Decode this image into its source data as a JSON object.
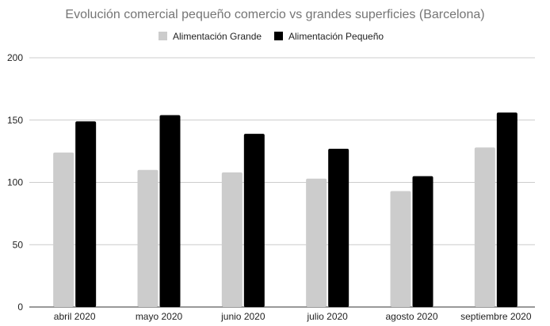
{
  "chart_data": {
    "type": "bar",
    "title": "Evolución comercial pequeño comercio vs grandes superficies (Barcelona)",
    "xlabel": "",
    "ylabel": "",
    "categories": [
      "abril 2020",
      "mayo 2020",
      "junio 2020",
      "julio 2020",
      "agosto 2020",
      "septiembre 2020"
    ],
    "series": [
      {
        "name": "Alimentación Grande",
        "color": "#cccccc",
        "values": [
          124,
          110,
          108,
          103,
          93,
          128
        ]
      },
      {
        "name": "Alimentación Pequeño",
        "color": "#000000",
        "values": [
          149,
          154,
          139,
          127,
          105,
          156
        ]
      }
    ],
    "ylim": [
      0,
      200
    ],
    "yticks": [
      "0",
      "50",
      "100",
      "150",
      "200"
    ],
    "grid": true,
    "legend_position": "top"
  }
}
